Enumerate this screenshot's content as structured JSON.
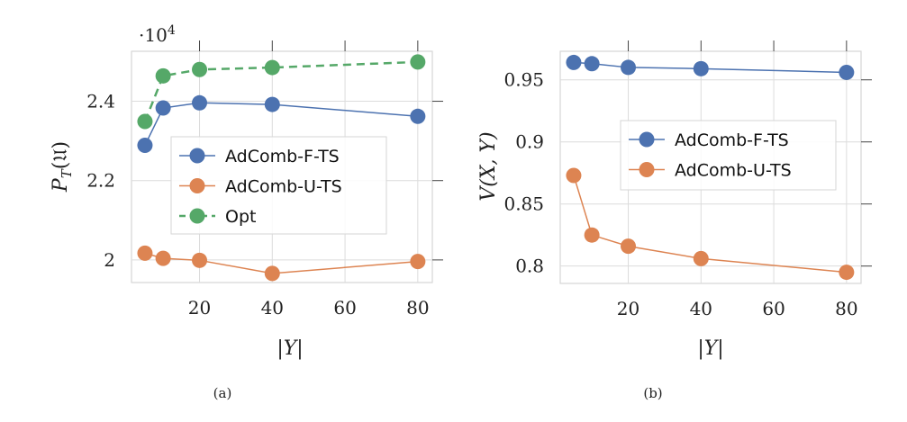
{
  "chart_data": [
    {
      "type": "line",
      "caption": "(a)",
      "xlabel": "|Y|",
      "ylabel": "P_T(𝔘)",
      "ylabel_main": "P",
      "ylabel_sub": "T",
      "ylabel_arg": "(𝔘)",
      "y_multiplier": "·10",
      "y_multiplier_exp": "4",
      "xlim": [
        1.3,
        84
      ],
      "ylim": [
        1.943,
        2.526
      ],
      "xticks": [
        20,
        40,
        60,
        80
      ],
      "xtick_labels": [
        "20",
        "40",
        "60",
        "80"
      ],
      "yticks": [
        2.0,
        2.2,
        2.4
      ],
      "ytick_labels": [
        "2",
        "2.2",
        "2.4"
      ],
      "grid": true,
      "legend_placement": "center",
      "x": [
        5,
        10,
        20,
        40,
        80
      ],
      "series": [
        {
          "name": "AdComb-F-TS",
          "color": "#4c72b0",
          "dashed": false,
          "values": [
            2.289,
            2.383,
            2.396,
            2.392,
            2.362
          ]
        },
        {
          "name": "AdComb-U-TS",
          "color": "#dd8452",
          "dashed": false,
          "values": [
            2.017,
            2.004,
            1.999,
            1.966,
            1.996
          ]
        },
        {
          "name": "Opt",
          "color": "#55a868",
          "dashed": true,
          "values": [
            2.349,
            2.464,
            2.48,
            2.485,
            2.499
          ]
        }
      ]
    },
    {
      "type": "line",
      "caption": "(b)",
      "xlabel": "|Y|",
      "ylabel": "V(X, Y)",
      "xlim": [
        1.3,
        84
      ],
      "ylim": [
        0.786,
        0.973
      ],
      "xticks": [
        20,
        40,
        60,
        80
      ],
      "xtick_labels": [
        "20",
        "40",
        "60",
        "80"
      ],
      "yticks": [
        0.8,
        0.85,
        0.9,
        0.95
      ],
      "ytick_labels": [
        "0.8",
        "0.85",
        "0.9",
        "0.95"
      ],
      "grid": true,
      "legend_placement": "center-right",
      "x": [
        5,
        10,
        20,
        40,
        80
      ],
      "series": [
        {
          "name": "AdComb-F-TS",
          "color": "#4c72b0",
          "dashed": false,
          "values": [
            0.964,
            0.963,
            0.96,
            0.959,
            0.956
          ]
        },
        {
          "name": "AdComb-U-TS",
          "color": "#dd8452",
          "dashed": false,
          "values": [
            0.873,
            0.825,
            0.816,
            0.806,
            0.795
          ]
        }
      ]
    }
  ]
}
